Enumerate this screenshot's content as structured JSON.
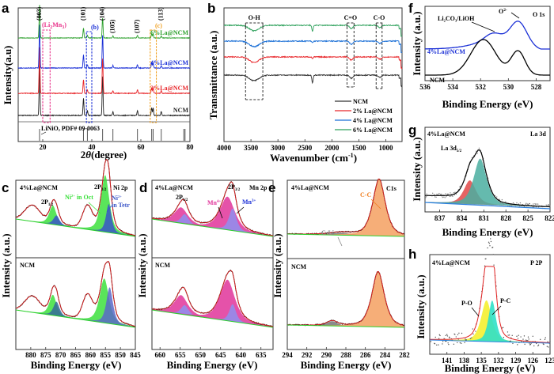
{
  "figure": {
    "panel_letters": [
      "a",
      "b",
      "c",
      "d",
      "e",
      "f",
      "g",
      "h"
    ]
  },
  "chart_data": [
    {
      "id": "a",
      "type": "line",
      "title": "",
      "xlabel": "2θ (degree)",
      "ylabel": "Intensity(a.u)",
      "xlim": [
        10,
        80
      ],
      "xticks": [
        20,
        40,
        60,
        80
      ],
      "series": [
        {
          "name": "NCM",
          "color": "#222222",
          "peaks": [
            18.7,
            36.6,
            38.2,
            44.4,
            48.6,
            58.6,
            64.4,
            65.0,
            68.3
          ],
          "heights": [
            1.0,
            0.35,
            0.1,
            0.8,
            0.08,
            0.1,
            0.15,
            0.15,
            0.08
          ]
        },
        {
          "name": "2%La@NCM",
          "color": "#e8262a",
          "peaks": [
            18.7,
            36.6,
            38.2,
            44.4,
            48.6,
            58.6,
            64.4,
            65.0,
            68.3
          ],
          "heights": [
            1.0,
            0.3,
            0.08,
            0.75,
            0.06,
            0.08,
            0.12,
            0.12,
            0.06
          ]
        },
        {
          "name": "4%La@NCM",
          "color": "#1a2fd6",
          "peaks": [
            18.7,
            36.6,
            38.2,
            44.4,
            48.6,
            58.6,
            64.4,
            65.0,
            68.3
          ],
          "heights": [
            1.0,
            0.3,
            0.08,
            0.75,
            0.06,
            0.08,
            0.12,
            0.12,
            0.06
          ]
        },
        {
          "name": "6%La@NCM",
          "color": "#2ca02c",
          "peaks": [
            18.7,
            36.6,
            38.2,
            44.4,
            48.6,
            58.6,
            64.4,
            65.0,
            68.3
          ],
          "heights": [
            1.0,
            0.3,
            0.08,
            0.6,
            0.06,
            0.08,
            0.12,
            0.12,
            0.06
          ]
        }
      ],
      "series_labels": [
        "NCM",
        "2%La@NCM",
        "4%La@NCM",
        "6%La@NCM"
      ],
      "peak_labels": [
        {
          "text": "(003)",
          "x": 18.7
        },
        {
          "text": "(101)",
          "x": 36.6
        },
        {
          "text": "(104)",
          "x": 44.4
        },
        {
          "text": "(105)",
          "x": 48.6
        },
        {
          "text": "(107)",
          "x": 58.6
        },
        {
          "text": "(113)",
          "x": 68.3
        }
      ],
      "boxes": [
        {
          "label": "(Li2Mn3)",
          "x": [
            20,
            23
          ],
          "color": "#e8338a"
        },
        {
          "label": "(b)",
          "x": [
            37.8,
            40
          ],
          "color": "#1a2fd6"
        },
        {
          "label": "(c)",
          "x": [
            63.8,
            66.3
          ],
          "color": "#f0a020"
        }
      ],
      "reference": {
        "label": "LiNiO2 PDF# 09-0063",
        "lines": [
          18.7,
          36.6,
          38.2,
          44.4,
          48.6,
          58.6,
          64.4,
          65.0,
          68.3,
          77.5,
          78.0
        ]
      }
    },
    {
      "id": "b",
      "type": "line",
      "xlabel": "Wavenumber (cm-1)",
      "ylabel": "Transmittance (a.u.)",
      "xlim": [
        4000,
        700
      ],
      "xticks": [
        4000,
        3500,
        3000,
        2500,
        2000,
        1500,
        1000
      ],
      "series": [
        {
          "name": "NCM",
          "color": "#333333"
        },
        {
          "name": "2% La@NCM",
          "color": "#e8262a"
        },
        {
          "name": "4% La@NCM",
          "color": "#1a6fd6"
        },
        {
          "name": "6% La@NCM",
          "color": "#2ca05a"
        }
      ],
      "bands": [
        {
          "label": "O-H",
          "x": [
            3600,
            3280
          ]
        },
        {
          "label": "C=O",
          "x": [
            1720,
            1590
          ]
        },
        {
          "label": "C-O",
          "x": [
            1180,
            1070
          ]
        }
      ],
      "legend": "bottom-right"
    },
    {
      "id": "c",
      "type": "area",
      "title": "Ni 2p",
      "xlabel": "Binding Energy (eV)",
      "ylabel": "Intensity (a.u.)",
      "xlim": [
        885,
        845
      ],
      "xticks": [
        880,
        875,
        870,
        865,
        860,
        855,
        850,
        845
      ],
      "subpanels": [
        "4%La@NCM",
        "NCM"
      ],
      "annotations": [
        "2P 1/2",
        "2P 3/2",
        "Ni2+ in Oct",
        "Ni2+ in Tetr"
      ],
      "components": [
        {
          "name": "Ni2+ in Oct",
          "color": "#3de03d",
          "centers": [
            872.5,
            855.2
          ]
        },
        {
          "name": "Ni2+ in Tetr",
          "color": "#3a55c8",
          "centers": [
            871.5,
            853.9
          ]
        }
      ]
    },
    {
      "id": "d",
      "type": "area",
      "title": "Mn 2p",
      "xlabel": "Binding Energy (eV)",
      "ylabel": "Intensity (a.u.)",
      "xlim": [
        662,
        632
      ],
      "xticks": [
        660,
        655,
        650,
        645,
        640,
        635
      ],
      "subpanels": [
        "4%La@NCM",
        "NCM"
      ],
      "annotations": [
        "2P 1/2",
        "2P 3/2",
        "Mn4+",
        "Mn3+"
      ],
      "components": [
        {
          "name": "Mn4+",
          "color": "#e0349a",
          "centers": [
            654.8,
            643.2
          ]
        },
        {
          "name": "Mn3+",
          "color": "#8f8ff0",
          "centers": [
            653.9,
            642.1
          ]
        }
      ]
    },
    {
      "id": "e",
      "type": "area",
      "title": "C1s",
      "xlabel": "Binding Energy (eV)",
      "ylabel": "Intensity (a.u.)",
      "xlim": [
        294,
        282
      ],
      "xticks": [
        294,
        292,
        290,
        288,
        286,
        284,
        282
      ],
      "subpanels": [
        "4%La@NCM",
        "NCM"
      ],
      "annotations": [
        "C-C",
        "C-Li"
      ],
      "components": [
        {
          "name": "C-C",
          "color": "#f4a060",
          "centers": [
            284.6
          ]
        },
        {
          "name": "C-Li",
          "color": "#777777",
          "centers": [
            289.3
          ]
        }
      ]
    },
    {
      "id": "f",
      "type": "line",
      "title": "O 1s",
      "xlabel": "Binding Energy (eV)",
      "ylabel": "Intensity (a.u.)",
      "xlim": [
        536,
        527
      ],
      "xticks": [
        536,
        534,
        532,
        530,
        528
      ],
      "series": [
        {
          "name": "4%La@NCM",
          "color": "#1a2fd6"
        },
        {
          "name": "NCM",
          "color": "#000000"
        }
      ],
      "annotations": [
        "Li2CO3/LiOH",
        "O2-"
      ]
    },
    {
      "id": "g",
      "type": "area",
      "title": "La 3d",
      "xlabel": "Binding Energy (eV)",
      "ylabel": "Intensity (a.u.)",
      "xlim": [
        839,
        822
      ],
      "xticks": [
        837,
        834,
        831,
        828,
        825,
        822
      ],
      "sample": "4%La@NCM",
      "annotations": [
        "La 3d 5/2"
      ],
      "components": [
        {
          "name": "comp1",
          "color": "#e04848",
          "center": 832.8
        },
        {
          "name": "comp2",
          "color": "#4aaea0",
          "center": 831.5
        }
      ]
    },
    {
      "id": "h",
      "type": "area",
      "title": "P 2P",
      "xlabel": "Binding Energy (eV)",
      "ylabel": "Intensity (a.u.)",
      "xlim": [
        144,
        123
      ],
      "xticks": [
        141,
        138,
        135,
        132,
        129,
        126,
        123
      ],
      "sample": "4%La@NCM",
      "annotations": [
        "P-O",
        "P-C"
      ],
      "components": [
        {
          "name": "P-O",
          "color": "#f5f030",
          "center": 134.0
        },
        {
          "name": "P-C",
          "color": "#30e0c8",
          "center": 133.2
        }
      ]
    }
  ],
  "text": {
    "a_ylabel": "Intensity(a.u)",
    "a_xlabel_pre": "2",
    "a_xlabel_theta": "θ",
    "a_xlabel_post": "(degree)",
    "a_ref": "LiNiO",
    "a_ref_sub": "2",
    "a_ref_post": " PDF# 09-0063",
    "a_box1": "(Li",
    "a_box1_sub": "2",
    "a_box1_mid": "Mn",
    "a_box1_sub2": "3",
    "a_box1_end": ")",
    "a_box2": "(b)",
    "a_box3": "(c)",
    "b_xlabel": "Wavenumber (cm",
    "b_xlabel_sup": "-1",
    "b_xlabel_end": ")",
    "b_ylabel": "Transmittance (a.u.)",
    "be_label": "Binding Energy (eV)",
    "int_label": "Intensity (a.u.)",
    "sample_la": "4%La@NCM",
    "sample_ncm": "NCM",
    "c_title": "Ni 2p",
    "c_2p32": "2P",
    "c_2p32_sub": "3/2",
    "c_2p12": "2P",
    "c_2p12_sub": "1/2",
    "c_oct": "Ni",
    "c_oct_sup": "2+",
    "c_oct_post": " in Oct",
    "c_tetr1": "Ni",
    "c_tetr1_sup": "2+",
    "c_tetr2": "in Tetr",
    "d_title": "Mn 2p",
    "d_mn4": "Mn",
    "d_mn4_sup": "4+",
    "d_mn3": "Mn",
    "d_mn3_sup": "3+",
    "e_title": "C1s",
    "e_cc": "C-C",
    "e_cli": "C-Li",
    "f_title": "O 1s",
    "f_li2co3": "Li",
    "f_li2co3_sub": "2",
    "f_li2co3_mid": "CO",
    "f_li2co3_sub2": "3",
    "f_li2co3_end": "/LiOH",
    "f_o2": "O",
    "f_o2_sup": "2-",
    "g_title": "La 3d",
    "g_la": "La 3d",
    "g_la_sub": "5/2",
    "h_title": "P 2P",
    "h_po": "P-O",
    "h_pc": "P-C"
  }
}
